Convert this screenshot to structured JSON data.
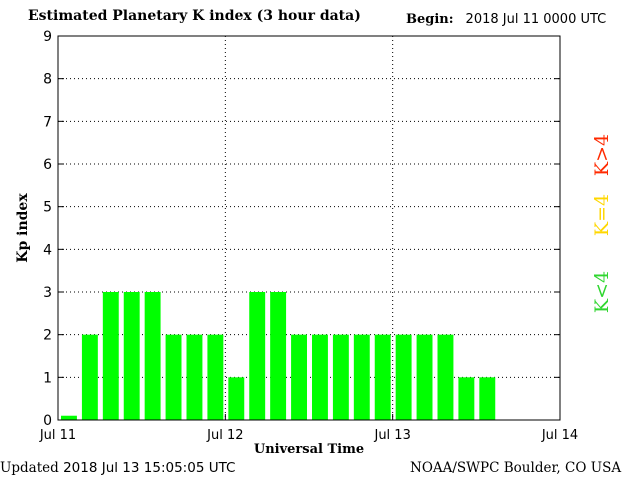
{
  "header": {
    "title": "Estimated Planetary K index (3 hour data)",
    "begin_label": "Begin:",
    "begin_value": "2018 Jul 11 0000 UTC"
  },
  "footer": {
    "updated_label": "Updated",
    "updated_value": "2018 Jul 13 15:05:05 UTC",
    "source": "NOAA/SWPC Boulder, CO USA"
  },
  "legend": [
    {
      "label": "K>4",
      "color": "#ff2a00"
    },
    {
      "label": "K=4",
      "color": "#ffd700"
    },
    {
      "label": "K<4",
      "color": "#2fd62f"
    }
  ],
  "chart_data": {
    "type": "bar",
    "title": "Estimated Planetary K index (3 hour data)",
    "xlabel": "Universal Time",
    "ylabel": "Kp index",
    "ylim": [
      0,
      9
    ],
    "yticks": [
      "0",
      "1",
      "2",
      "3",
      "4",
      "5",
      "6",
      "7",
      "8",
      "9"
    ],
    "xticks": [
      "Jul 11",
      "Jul 12",
      "Jul 13",
      "Jul 14"
    ],
    "x_start": "2018-07-11 00:00 UTC",
    "x_end": "2018-07-14 00:00 UTC",
    "bar_interval_hours": 3,
    "grid": true,
    "bar_color": "#00ff00",
    "values": [
      0.1,
      2,
      3,
      3,
      3,
      2,
      2,
      2,
      1,
      3,
      3,
      2,
      2,
      2,
      2,
      2,
      2,
      2,
      2,
      1,
      1
    ]
  }
}
